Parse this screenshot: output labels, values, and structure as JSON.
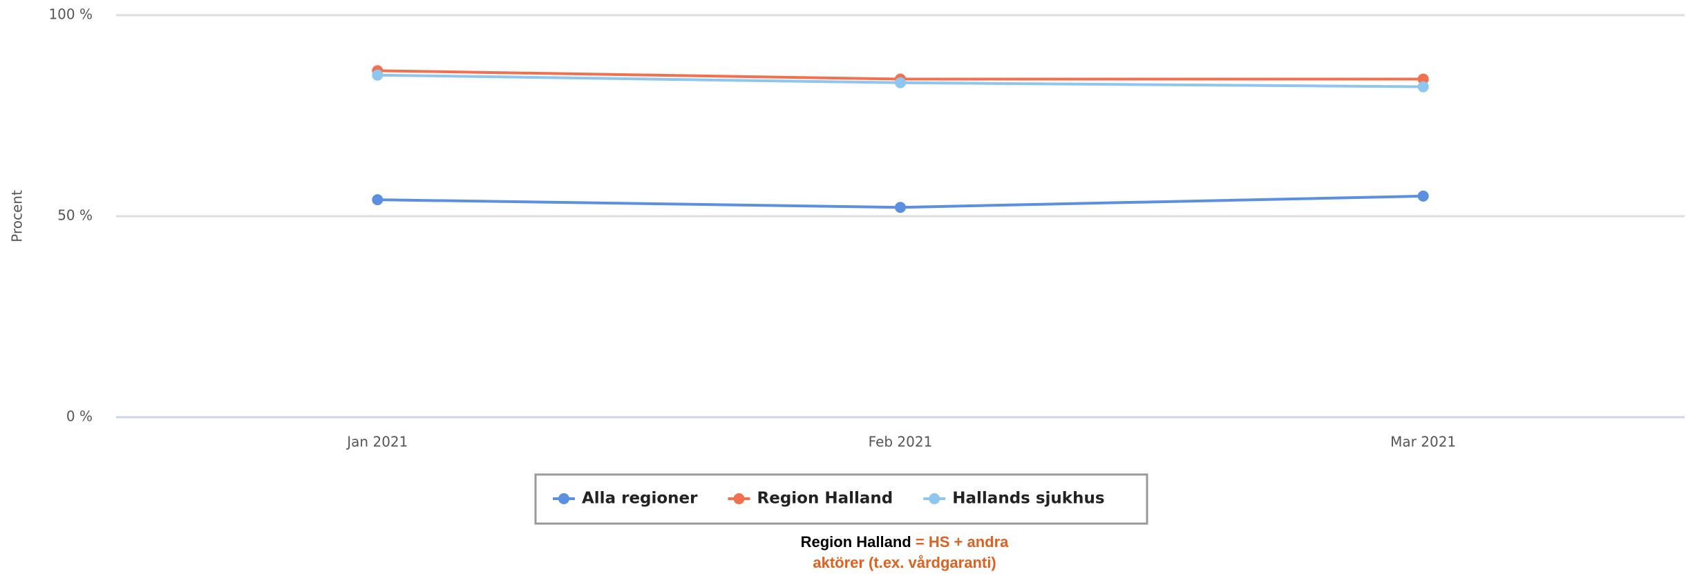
{
  "chart_data": {
    "type": "line",
    "y_label": "Procent",
    "categories": [
      "Jan 2021",
      "Feb 2021",
      "Mar 2021"
    ],
    "series": [
      {
        "name": "Alla regioner",
        "color": "#5b8fe0",
        "values": [
          54.1,
          52.2,
          55
        ]
      },
      {
        "name": "Region Halland",
        "color": "#f0714f",
        "values": [
          86.2,
          84.1,
          84.1
        ]
      },
      {
        "name": "Hallands sjukhus",
        "color": "#8ec6f0",
        "values": [
          85.1,
          83.2,
          82.2
        ]
      }
    ],
    "ylim": [
      0,
      100
    ],
    "yticks": [
      {
        "value": 0,
        "label": "0 %"
      },
      {
        "value": 50,
        "label": "50 %"
      },
      {
        "value": 100,
        "label": "100 %"
      }
    ],
    "grid": true,
    "legend": "bottom",
    "note": {
      "label": "Region Halland",
      "text": [
        "= HS + andra",
        "aktörer (t.ex. vårdgaranti)"
      ]
    }
  }
}
